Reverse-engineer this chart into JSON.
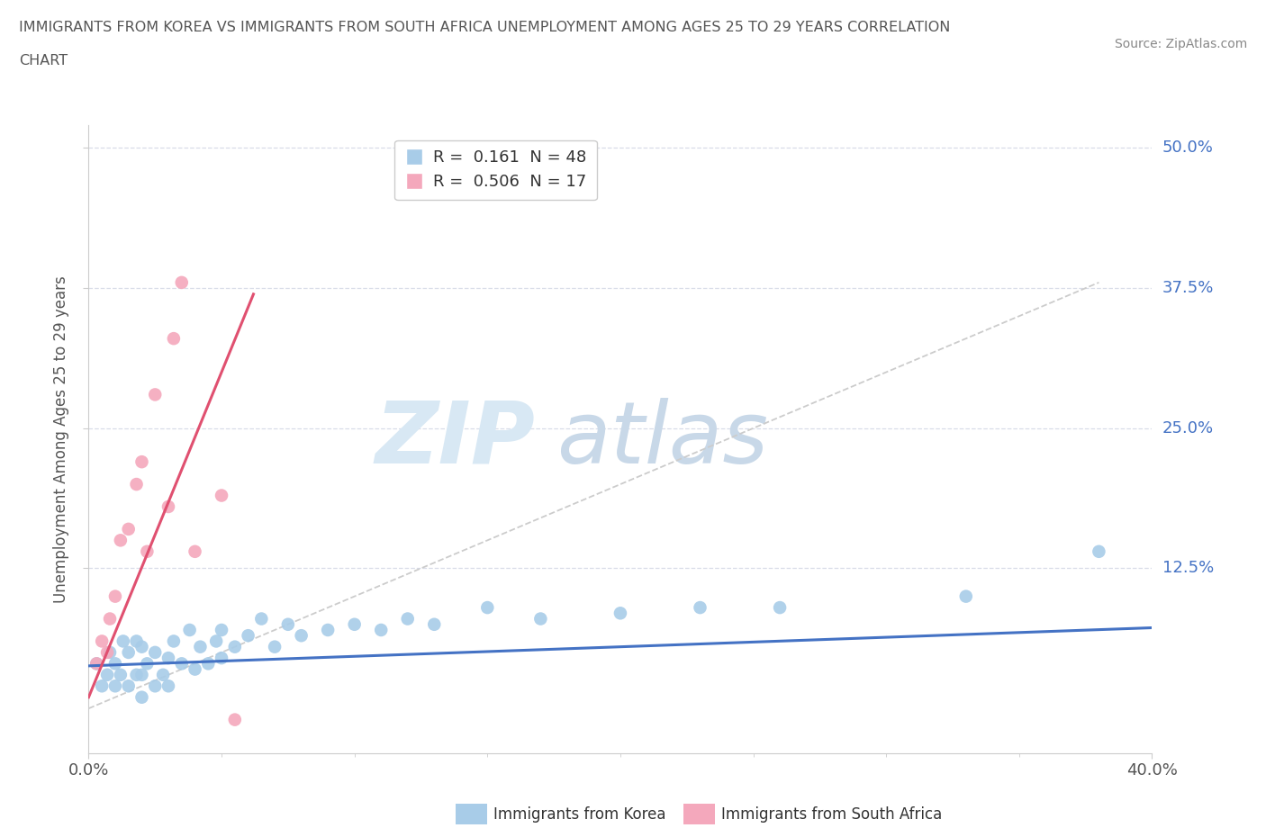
{
  "title_line1": "IMMIGRANTS FROM KOREA VS IMMIGRANTS FROM SOUTH AFRICA UNEMPLOYMENT AMONG AGES 25 TO 29 YEARS CORRELATION",
  "title_line2": "CHART",
  "source": "Source: ZipAtlas.com",
  "ylabel": "Unemployment Among Ages 25 to 29 years",
  "xlim": [
    0.0,
    0.4
  ],
  "ylim": [
    -0.04,
    0.52
  ],
  "ytick_vals": [
    0.125,
    0.25,
    0.375,
    0.5
  ],
  "ytick_labels": [
    "12.5%",
    "25.0%",
    "37.5%",
    "50.0%"
  ],
  "xtick_vals": [
    0.0,
    0.4
  ],
  "xtick_labels": [
    "0.0%",
    "40.0%"
  ],
  "korea_R": 0.161,
  "korea_N": 48,
  "sa_R": 0.506,
  "sa_N": 17,
  "korea_color": "#a8cce8",
  "sa_color": "#f4a8bc",
  "korea_line_color": "#4472c4",
  "sa_line_color": "#e05070",
  "diagonal_color": "#cccccc",
  "watermark_zip_color": "#d8e8f4",
  "watermark_atlas_color": "#c8d8e8",
  "legend_edge_color": "#cccccc",
  "ytick_color": "#4472c4",
  "xtick_color": "#555555",
  "grid_color": "#d8dce8",
  "spine_color": "#cccccc",
  "ylabel_color": "#555555",
  "korea_x": [
    0.003,
    0.005,
    0.007,
    0.008,
    0.01,
    0.01,
    0.012,
    0.013,
    0.015,
    0.015,
    0.018,
    0.018,
    0.02,
    0.02,
    0.02,
    0.022,
    0.025,
    0.025,
    0.028,
    0.03,
    0.03,
    0.032,
    0.035,
    0.038,
    0.04,
    0.042,
    0.045,
    0.048,
    0.05,
    0.05,
    0.055,
    0.06,
    0.065,
    0.07,
    0.075,
    0.08,
    0.09,
    0.1,
    0.11,
    0.12,
    0.13,
    0.15,
    0.17,
    0.2,
    0.23,
    0.26,
    0.33,
    0.38
  ],
  "korea_y": [
    0.04,
    0.02,
    0.03,
    0.05,
    0.02,
    0.04,
    0.03,
    0.06,
    0.02,
    0.05,
    0.03,
    0.06,
    0.01,
    0.03,
    0.055,
    0.04,
    0.02,
    0.05,
    0.03,
    0.02,
    0.045,
    0.06,
    0.04,
    0.07,
    0.035,
    0.055,
    0.04,
    0.06,
    0.045,
    0.07,
    0.055,
    0.065,
    0.08,
    0.055,
    0.075,
    0.065,
    0.07,
    0.075,
    0.07,
    0.08,
    0.075,
    0.09,
    0.08,
    0.085,
    0.09,
    0.09,
    0.1,
    0.14
  ],
  "sa_x": [
    0.003,
    0.005,
    0.007,
    0.008,
    0.01,
    0.012,
    0.015,
    0.018,
    0.02,
    0.022,
    0.025,
    0.03,
    0.032,
    0.035,
    0.04,
    0.05,
    0.055
  ],
  "sa_y": [
    0.04,
    0.06,
    0.05,
    0.08,
    0.1,
    0.15,
    0.16,
    0.2,
    0.22,
    0.14,
    0.28,
    0.18,
    0.33,
    0.38,
    0.14,
    0.19,
    -0.01
  ],
  "korea_slope": 0.085,
  "korea_intercept": 0.038,
  "sa_slope": 5.8,
  "sa_intercept": 0.01,
  "sa_line_xend": 0.062,
  "diag_xstart": 0.0,
  "diag_xend": 0.38
}
